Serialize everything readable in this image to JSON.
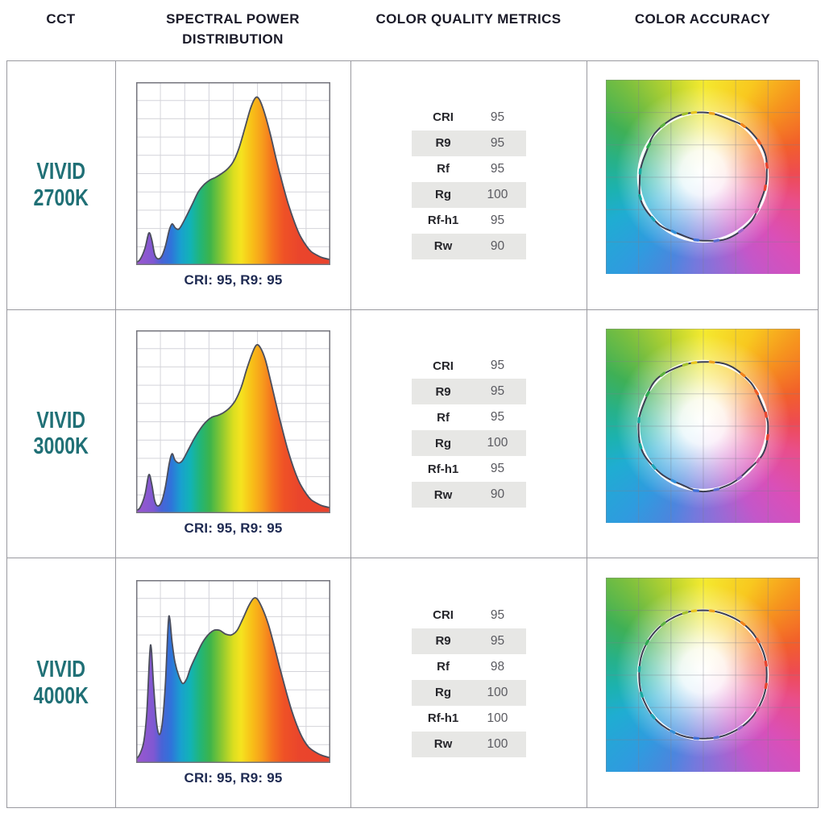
{
  "header": {
    "columns": [
      "CCT",
      "SPECTRAL POWER DISTRIBUTION",
      "COLOR QUALITY METRICS",
      "COLOR ACCURACY"
    ]
  },
  "colors": {
    "accent_teal": "#207076",
    "header_text": "#1a1a28",
    "caption_navy": "#1e2a52",
    "table_border": "#9a9aa0",
    "metric_shade": "#e7e7e5",
    "spd_curve_stroke": "#4b4e5c",
    "spd_gradient": [
      [
        0,
        "#9c57cf"
      ],
      [
        9,
        "#7f58d2"
      ],
      [
        13,
        "#4a63d6"
      ],
      [
        18,
        "#2f74da"
      ],
      [
        23,
        "#19a0cf"
      ],
      [
        28,
        "#12b3b5"
      ],
      [
        33,
        "#22b577"
      ],
      [
        38,
        "#3cb44b"
      ],
      [
        44,
        "#8bc831"
      ],
      [
        50,
        "#dade20"
      ],
      [
        54,
        "#f5e31f"
      ],
      [
        60,
        "#f8bd18"
      ],
      [
        65,
        "#f79c1c"
      ],
      [
        70,
        "#f4731f"
      ],
      [
        76,
        "#ef5226"
      ],
      [
        84,
        "#ea452c"
      ],
      [
        100,
        "#e9432d"
      ]
    ],
    "accuracy_wheel": [
      [
        0,
        "#f4ea2f"
      ],
      [
        28,
        "#f8c81f"
      ],
      [
        48,
        "#f6931e"
      ],
      [
        70,
        "#f2602a"
      ],
      [
        88,
        "#ee4b52"
      ],
      [
        105,
        "#e94e8a"
      ],
      [
        130,
        "#da4fb8"
      ],
      [
        150,
        "#c357c9"
      ],
      [
        168,
        "#9a6ad5"
      ],
      [
        185,
        "#7479dd"
      ],
      [
        200,
        "#4b86de"
      ],
      [
        220,
        "#2f9bdf"
      ],
      [
        245,
        "#1fadd2"
      ],
      [
        262,
        "#1cb2af"
      ],
      [
        280,
        "#27b188"
      ],
      [
        300,
        "#3fb056"
      ],
      [
        320,
        "#7abf3f"
      ],
      [
        340,
        "#b8d32f"
      ],
      [
        360,
        "#f4ea2f"
      ]
    ],
    "accuracy_ticks": [
      {
        "a": -8,
        "c": "#e8c61e"
      },
      {
        "a": 8,
        "c": "#f0a21c"
      },
      {
        "a": 38,
        "c": "#f08119"
      },
      {
        "a": 58,
        "c": "#ee5a24"
      },
      {
        "a": 80,
        "c": "#e8432d"
      },
      {
        "a": 100,
        "c": "#e8432d"
      },
      {
        "a": 122,
        "c": "#cf4f9e"
      },
      {
        "a": 145,
        "c": "#9a63c8"
      },
      {
        "a": 168,
        "c": "#5b6ed2"
      },
      {
        "a": 186,
        "c": "#3f6fd8"
      },
      {
        "a": 208,
        "c": "#2f8ed8"
      },
      {
        "a": 230,
        "c": "#1ba4b4"
      },
      {
        "a": 252,
        "c": "#16a89e"
      },
      {
        "a": 275,
        "c": "#16a89e"
      },
      {
        "a": 300,
        "c": "#2aa84e"
      },
      {
        "a": 322,
        "c": "#59b13e"
      },
      {
        "a": 344,
        "c": "#a3c32c"
      }
    ]
  },
  "rows": [
    {
      "cct_line1": "VIVID",
      "cct_line2": "2700K",
      "caption": "CRI: 95, R9: 95",
      "metrics": [
        {
          "label": "CRI",
          "value": "95"
        },
        {
          "label": "R9",
          "value": "95"
        },
        {
          "label": "Rf",
          "value": "95"
        },
        {
          "label": "Rg",
          "value": "100"
        },
        {
          "label": "Rf-h1",
          "value": "95"
        },
        {
          "label": "Rw",
          "value": "90"
        }
      ],
      "circle_offsets": [
        1.0,
        0.98,
        1.02,
        1.03,
        0.99,
        0.97,
        1.02,
        1.03,
        0.99,
        0.96,
        1.01,
        1.03,
        0.98,
        0.96,
        1.01,
        1.02
      ]
    },
    {
      "cct_line1": "VIVID",
      "cct_line2": "3000K",
      "caption": "CRI: 95, R9: 95",
      "metrics": [
        {
          "label": "CRI",
          "value": "95"
        },
        {
          "label": "R9",
          "value": "95"
        },
        {
          "label": "Rf",
          "value": "95"
        },
        {
          "label": "Rg",
          "value": "100"
        },
        {
          "label": "Rf-h1",
          "value": "95"
        },
        {
          "label": "Rw",
          "value": "90"
        }
      ],
      "circle_offsets": [
        0.99,
        1.02,
        1.0,
        0.97,
        1.01,
        1.03,
        0.98,
        1.0,
        1.02,
        0.97,
        0.99,
        1.02,
        1.0,
        0.98,
        1.02,
        0.99
      ]
    },
    {
      "cct_line1": "VIVID",
      "cct_line2": "4000K",
      "caption": "CRI: 95, R9: 95",
      "metrics": [
        {
          "label": "CRI",
          "value": "95"
        },
        {
          "label": "R9",
          "value": "95"
        },
        {
          "label": "Rf",
          "value": "98"
        },
        {
          "label": "Rg",
          "value": "100"
        },
        {
          "label": "Rf-h1",
          "value": "100"
        },
        {
          "label": "Rw",
          "value": "100"
        }
      ],
      "circle_offsets": [
        1.0,
        1.0,
        1.01,
        1.0,
        0.99,
        1.0,
        1.01,
        1.0,
        0.99,
        1.0,
        1.01,
        1.0,
        0.99,
        1.0,
        1.0,
        1.0
      ]
    }
  ],
  "chart_data": [
    {
      "type": "area",
      "title": "VIVID 2700K spectral power distribution",
      "caption": "CRI: 95, R9: 95",
      "xlabel": "",
      "ylabel": "",
      "x_range_pct": [
        0,
        100
      ],
      "ylim": [
        0,
        1
      ],
      "grid": {
        "cols": 8,
        "rows": 10
      },
      "legend": "none",
      "points": [
        [
          0,
          0.015
        ],
        [
          2,
          0.03
        ],
        [
          4.5,
          0.09
        ],
        [
          6.5,
          0.175
        ],
        [
          8,
          0.14
        ],
        [
          9.5,
          0.06
        ],
        [
          11,
          0.035
        ],
        [
          13,
          0.045
        ],
        [
          15,
          0.1
        ],
        [
          17,
          0.19
        ],
        [
          18.5,
          0.225
        ],
        [
          20,
          0.205
        ],
        [
          21.5,
          0.195
        ],
        [
          23,
          0.21
        ],
        [
          26,
          0.27
        ],
        [
          29,
          0.335
        ],
        [
          32,
          0.4
        ],
        [
          35,
          0.44
        ],
        [
          38,
          0.465
        ],
        [
          41,
          0.48
        ],
        [
          44,
          0.5
        ],
        [
          47,
          0.525
        ],
        [
          50,
          0.565
        ],
        [
          53,
          0.64
        ],
        [
          56,
          0.75
        ],
        [
          59,
          0.86
        ],
        [
          61.5,
          0.915
        ],
        [
          63.5,
          0.905
        ],
        [
          66,
          0.835
        ],
        [
          69,
          0.72
        ],
        [
          72,
          0.585
        ],
        [
          75,
          0.46
        ],
        [
          78,
          0.345
        ],
        [
          81,
          0.25
        ],
        [
          84,
          0.17
        ],
        [
          87,
          0.115
        ],
        [
          90,
          0.075
        ],
        [
          93,
          0.055
        ],
        [
          96,
          0.04
        ],
        [
          100,
          0.03
        ]
      ]
    },
    {
      "type": "area",
      "title": "VIVID 3000K spectral power distribution",
      "caption": "CRI: 95, R9: 95",
      "xlabel": "",
      "ylabel": "",
      "x_range_pct": [
        0,
        100
      ],
      "ylim": [
        0,
        1
      ],
      "grid": {
        "cols": 8,
        "rows": 10
      },
      "legend": "none",
      "points": [
        [
          0,
          0.015
        ],
        [
          2,
          0.03
        ],
        [
          4.5,
          0.1
        ],
        [
          6.5,
          0.21
        ],
        [
          8,
          0.16
        ],
        [
          9.5,
          0.07
        ],
        [
          11,
          0.04
        ],
        [
          13,
          0.06
        ],
        [
          15,
          0.14
        ],
        [
          17,
          0.27
        ],
        [
          18.5,
          0.325
        ],
        [
          20,
          0.29
        ],
        [
          22,
          0.275
        ],
        [
          24,
          0.29
        ],
        [
          27,
          0.35
        ],
        [
          30,
          0.41
        ],
        [
          33,
          0.46
        ],
        [
          36,
          0.5
        ],
        [
          39,
          0.525
        ],
        [
          42,
          0.535
        ],
        [
          45,
          0.55
        ],
        [
          48,
          0.575
        ],
        [
          51,
          0.615
        ],
        [
          54,
          0.685
        ],
        [
          57,
          0.79
        ],
        [
          60,
          0.88
        ],
        [
          62,
          0.92
        ],
        [
          64,
          0.905
        ],
        [
          66.5,
          0.84
        ],
        [
          69,
          0.735
        ],
        [
          72,
          0.6
        ],
        [
          75,
          0.47
        ],
        [
          78,
          0.35
        ],
        [
          81,
          0.25
        ],
        [
          84,
          0.17
        ],
        [
          87,
          0.115
        ],
        [
          90,
          0.075
        ],
        [
          93,
          0.055
        ],
        [
          96,
          0.04
        ],
        [
          100,
          0.03
        ]
      ]
    },
    {
      "type": "area",
      "title": "VIVID 4000K spectral power distribution",
      "caption": "CRI: 95, R9: 95",
      "xlabel": "",
      "ylabel": "",
      "x_range_pct": [
        0,
        100
      ],
      "ylim": [
        0,
        1
      ],
      "grid": {
        "cols": 8,
        "rows": 10
      },
      "legend": "none",
      "points": [
        [
          0,
          0.02
        ],
        [
          2,
          0.05
        ],
        [
          4,
          0.12
        ],
        [
          5.5,
          0.28
        ],
        [
          7,
          0.6
        ],
        [
          7.8,
          0.625
        ],
        [
          9,
          0.42
        ],
        [
          10.5,
          0.22
        ],
        [
          12,
          0.155
        ],
        [
          13.5,
          0.22
        ],
        [
          15,
          0.42
        ],
        [
          16.5,
          0.76
        ],
        [
          17.3,
          0.79
        ],
        [
          18.5,
          0.66
        ],
        [
          20,
          0.55
        ],
        [
          22,
          0.475
        ],
        [
          24,
          0.435
        ],
        [
          26,
          0.46
        ],
        [
          28,
          0.52
        ],
        [
          31,
          0.59
        ],
        [
          34,
          0.655
        ],
        [
          37,
          0.7
        ],
        [
          40,
          0.725
        ],
        [
          43,
          0.725
        ],
        [
          46,
          0.705
        ],
        [
          49,
          0.7
        ],
        [
          52,
          0.725
        ],
        [
          55,
          0.79
        ],
        [
          58,
          0.86
        ],
        [
          60.5,
          0.9
        ],
        [
          62.5,
          0.895
        ],
        [
          65,
          0.845
        ],
        [
          68,
          0.76
        ],
        [
          71,
          0.645
        ],
        [
          74,
          0.52
        ],
        [
          77,
          0.4
        ],
        [
          80,
          0.29
        ],
        [
          83,
          0.2
        ],
        [
          86,
          0.13
        ],
        [
          89,
          0.085
        ],
        [
          93,
          0.055
        ],
        [
          96,
          0.04
        ],
        [
          100,
          0.028
        ]
      ]
    }
  ]
}
